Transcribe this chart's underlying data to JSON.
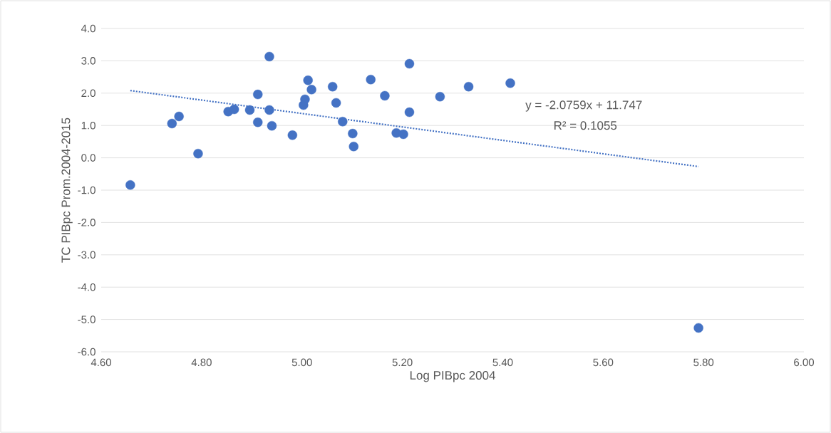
{
  "chart_data": {
    "type": "scatter",
    "xlabel": "Log PIBpc 2004",
    "ylabel": "TC PIBpc Prom.2004-2015",
    "series": [
      {
        "type": "scatter",
        "color": "#4472c4",
        "marker": "circle",
        "x": [
          4.658,
          4.741,
          4.755,
          4.793,
          4.853,
          4.865,
          4.896,
          4.912,
          4.912,
          4.935,
          4.935,
          4.94,
          4.981,
          5.003,
          5.006,
          5.012,
          5.019,
          5.061,
          5.068,
          5.081,
          5.101,
          5.103,
          5.137,
          5.165,
          5.188,
          5.202,
          5.214,
          5.214,
          5.275,
          5.332,
          5.415,
          5.79
        ],
        "values": [
          -0.84,
          1.06,
          1.28,
          0.13,
          1.43,
          1.5,
          1.48,
          1.96,
          1.1,
          3.13,
          1.48,
          0.99,
          0.7,
          1.63,
          1.81,
          2.4,
          2.11,
          2.2,
          1.7,
          1.12,
          0.75,
          0.35,
          2.42,
          1.92,
          0.77,
          0.73,
          1.41,
          2.91,
          1.89,
          2.2,
          2.31,
          -5.26
        ]
      },
      {
        "type": "line",
        "color": "#4472c4",
        "marker": "none",
        "line_style": "dotted",
        "x": [
          4.658,
          5.79
        ],
        "values": [
          2.08,
          -0.27
        ]
      }
    ],
    "annotations": [
      "y = -2.0759x + 11.747",
      "R² = 0.1055"
    ],
    "xlim": [
      4.6,
      6.0
    ],
    "xticks": [
      {
        "value": 4.6,
        "label": "4.60"
      },
      {
        "value": 4.8,
        "label": "4.80"
      },
      {
        "value": 5.0,
        "label": "5.00"
      },
      {
        "value": 5.2,
        "label": "5.20"
      },
      {
        "value": 5.4,
        "label": "5.40"
      },
      {
        "value": 5.6,
        "label": "5.60"
      },
      {
        "value": 5.8,
        "label": "5.80"
      },
      {
        "value": 6.0,
        "label": "6.00"
      }
    ],
    "ylim": [
      -6.0,
      4.0
    ],
    "yticks": [
      {
        "value": -6,
        "label": "-6.0"
      },
      {
        "value": -5,
        "label": "-5.0"
      },
      {
        "value": -4,
        "label": "-4.0"
      },
      {
        "value": -3,
        "label": "-3.0"
      },
      {
        "value": -2,
        "label": "-2.0"
      },
      {
        "value": -1,
        "label": "-1.0"
      },
      {
        "value": 0,
        "label": "0.0"
      },
      {
        "value": 1,
        "label": "1.0"
      },
      {
        "value": 2,
        "label": "2.0"
      },
      {
        "value": 3,
        "label": "3.0"
      },
      {
        "value": 4,
        "label": "4.0"
      }
    ],
    "grid": "y"
  }
}
